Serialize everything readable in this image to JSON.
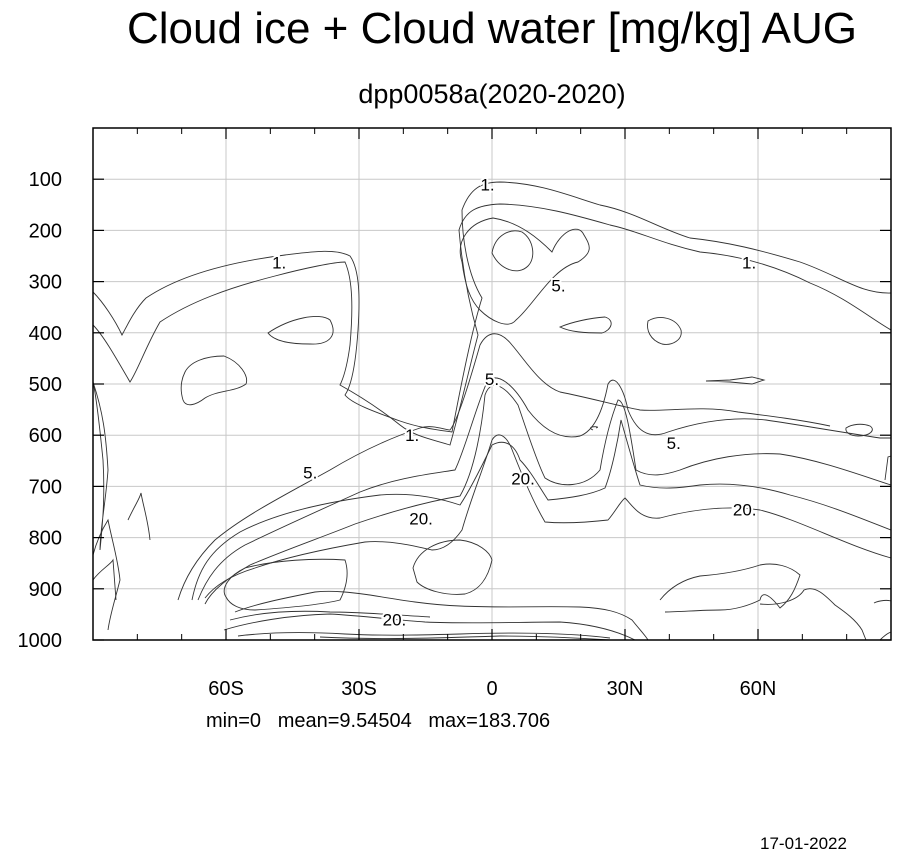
{
  "chart_data": {
    "type": "contour",
    "title": "Cloud ice + Cloud water [mg/kg] AUG",
    "subtitle": "dpp0058a(2020-2020)",
    "xlabel": "",
    "ylabel": "",
    "x_axis": {
      "range": [
        -90,
        90
      ],
      "ticks": [
        -60,
        -30,
        0,
        30,
        60
      ],
      "tick_labels": [
        "60S",
        "30S",
        "0",
        "30N",
        "60N"
      ],
      "minor_ticks": [
        -80,
        -70,
        -50,
        -40,
        -20,
        -10,
        10,
        20,
        40,
        50,
        70,
        80
      ]
    },
    "y_axis": {
      "range": [
        1000,
        0
      ],
      "ticks": [
        100,
        200,
        300,
        400,
        500,
        600,
        700,
        800,
        900,
        1000
      ],
      "tick_labels": [
        "100",
        "200",
        "300",
        "400",
        "500",
        "600",
        "700",
        "800",
        "900",
        "1000"
      ]
    },
    "grid": true,
    "contour_levels": [
      1,
      5,
      20
    ],
    "contour_labels": [
      {
        "text": "1.",
        "x": -48,
        "y": 263
      },
      {
        "text": "1.",
        "x": -18,
        "y": 600
      },
      {
        "text": "1.",
        "x": -1,
        "y": 110
      },
      {
        "text": "1.",
        "x": 58,
        "y": 263
      },
      {
        "text": "5.",
        "x": 15,
        "y": 308
      },
      {
        "text": "5.",
        "x": 0,
        "y": 490
      },
      {
        "text": "5.",
        "x": -41,
        "y": 673
      },
      {
        "text": "5.",
        "x": 41,
        "y": 615
      },
      {
        "text": "20.",
        "x": -16,
        "y": 763
      },
      {
        "text": "20.",
        "x": 7,
        "y": 685
      },
      {
        "text": "20.",
        "x": 57,
        "y": 745
      },
      {
        "text": "20.",
        "x": -22,
        "y": 960
      }
    ],
    "stats": {
      "min": "0",
      "mean": "9.54504",
      "max": "183.706"
    }
  },
  "footer": {
    "stats_text": "min=0   mean=9.54504   max=183.706",
    "date": "17-01-2022"
  }
}
